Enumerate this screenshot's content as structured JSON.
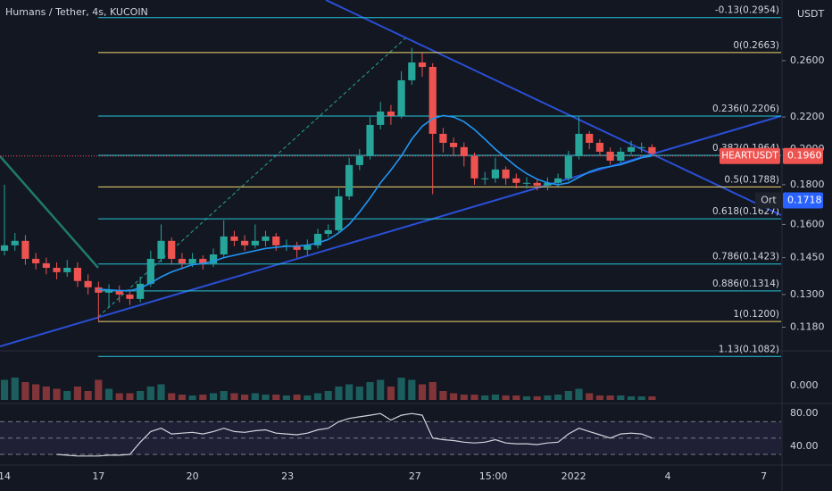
{
  "header": {
    "title": "Humans / Tether, 4s, KUCOIN",
    "currency": "USDT"
  },
  "chart_data": {
    "type": "candlestick",
    "scale": "log",
    "up_color": "#26a69a",
    "down_color": "#ef5350",
    "xlim": [
      -0.43,
      74.36
    ],
    "xticks": [
      {
        "value": 0,
        "label": "14"
      },
      {
        "value": 9,
        "label": "17"
      },
      {
        "value": 18,
        "label": "20"
      },
      {
        "value": 27.1,
        "label": "23"
      },
      {
        "value": 39.3,
        "label": "27"
      },
      {
        "value": 46.8,
        "label": "15:00"
      },
      {
        "value": 54.5,
        "label": "2022"
      },
      {
        "value": 63.5,
        "label": "4"
      },
      {
        "value": 72.7,
        "label": "7"
      }
    ],
    "ylim": [
      0.1103,
      0.3112
    ],
    "yticks": [
      {
        "value": 0.26,
        "label": "0.2600"
      },
      {
        "value": 0.22,
        "label": "0.2200"
      },
      {
        "value": 0.2,
        "label": "0.2000"
      },
      {
        "value": 0.18,
        "label": "0.1800"
      },
      {
        "value": 0.16,
        "label": "0.1600"
      },
      {
        "value": 0.145,
        "label": "0.1450"
      },
      {
        "value": 0.13,
        "label": "0.1300"
      },
      {
        "value": 0.118,
        "label": "0.1180"
      }
    ],
    "open": [
      0.148,
      0.1504,
      0.1524,
      0.1445,
      0.1426,
      0.1407,
      0.1389,
      0.1407,
      0.1353,
      0.1328,
      0.1307,
      0.1317,
      0.13,
      0.1283,
      0.1342,
      0.1445,
      0.1524,
      0.1445,
      0.1426,
      0.1445,
      0.1426,
      0.1464,
      0.1544,
      0.1524,
      0.1504,
      0.1524,
      0.1544,
      0.1504,
      0.1504,
      0.1484,
      0.1504,
      0.1556,
      0.1573,
      0.1739,
      0.1908,
      0.1959,
      0.2149,
      0.2236,
      0.2207,
      0.2453,
      0.2586,
      0.2552,
      0.2093,
      0.2038,
      0.2012,
      0.1959,
      0.1834,
      0.1834,
      0.1883,
      0.1834,
      0.181,
      0.181,
      0.1795,
      0.181,
      0.1834,
      0.1959,
      0.2093,
      0.2038,
      0.1985,
      0.1933,
      0.1985,
      0.2012,
      0.2012
    ],
    "high": [
      0.18,
      0.156,
      0.155,
      0.147,
      0.145,
      0.143,
      0.144,
      0.143,
      0.138,
      0.135,
      0.134,
      0.1335,
      0.132,
      0.137,
      0.148,
      0.16,
      0.154,
      0.147,
      0.147,
      0.146,
      0.149,
      0.162,
      0.157,
      0.155,
      0.16,
      0.157,
      0.156,
      0.153,
      0.152,
      0.153,
      0.158,
      0.16,
      0.178,
      0.195,
      0.2,
      0.22,
      0.23,
      0.228,
      0.252,
      0.27,
      0.266,
      0.258,
      0.213,
      0.207,
      0.204,
      0.198,
      0.187,
      0.195,
      0.19,
      0.186,
      0.184,
      0.183,
      0.184,
      0.186,
      0.199,
      0.2206,
      0.211,
      0.206,
      0.201,
      0.201,
      0.205,
      0.204,
      0.203
    ],
    "low": [
      0.146,
      0.148,
      0.142,
      0.14,
      0.138,
      0.136,
      0.137,
      0.133,
      0.13,
      0.12,
      0.125,
      0.127,
      0.126,
      0.127,
      0.133,
      0.143,
      0.142,
      0.14,
      0.141,
      0.14,
      0.141,
      0.145,
      0.15,
      0.148,
      0.149,
      0.15,
      0.148,
      0.148,
      0.145,
      0.146,
      0.149,
      0.154,
      0.156,
      0.172,
      0.188,
      0.194,
      0.212,
      0.215,
      0.219,
      0.242,
      0.248,
      0.175,
      0.198,
      0.196,
      0.19,
      0.18,
      0.18,
      0.181,
      0.18,
      0.178,
      0.178,
      0.177,
      0.177,
      0.179,
      0.182,
      0.194,
      0.2,
      0.196,
      0.191,
      0.192,
      0.197,
      0.198,
      0.196
    ],
    "close": [
      0.1504,
      0.1524,
      0.1445,
      0.1426,
      0.1407,
      0.1389,
      0.1407,
      0.1353,
      0.1328,
      0.1307,
      0.1317,
      0.13,
      0.1283,
      0.1342,
      0.1445,
      0.1524,
      0.1445,
      0.1426,
      0.1445,
      0.1426,
      0.1464,
      0.1544,
      0.1524,
      0.1504,
      0.1524,
      0.1544,
      0.1504,
      0.1504,
      0.1484,
      0.1504,
      0.1556,
      0.1573,
      0.1739,
      0.1908,
      0.1959,
      0.2149,
      0.2236,
      0.2207,
      0.2453,
      0.2586,
      0.2552,
      0.2093,
      0.2038,
      0.2012,
      0.1959,
      0.1834,
      0.1834,
      0.1883,
      0.1834,
      0.181,
      0.181,
      0.1795,
      0.181,
      0.1834,
      0.1959,
      0.2093,
      0.2038,
      0.1985,
      0.1933,
      0.1985,
      0.2012,
      0.2012,
      0.1975
    ],
    "ma": {
      "color": "#2196f3",
      "values": [
        null,
        null,
        null,
        null,
        null,
        null,
        null,
        null,
        null,
        0.132,
        0.1318,
        0.1315,
        0.1315,
        0.1325,
        0.1345,
        0.137,
        0.139,
        0.1405,
        0.142,
        0.1425,
        0.1435,
        0.145,
        0.146,
        0.147,
        0.148,
        0.149,
        0.1495,
        0.15,
        0.15,
        0.1505,
        0.1515,
        0.153,
        0.156,
        0.16,
        0.166,
        0.173,
        0.181,
        0.188,
        0.196,
        0.206,
        0.214,
        0.219,
        0.221,
        0.22,
        0.217,
        0.212,
        0.206,
        0.2,
        0.195,
        0.19,
        0.186,
        0.183,
        0.181,
        0.18,
        0.181,
        0.184,
        0.187,
        0.189,
        0.19,
        0.191,
        0.193,
        0.195,
        0.196
      ]
    },
    "fib_levels": [
      {
        "label": "-0.13(0.2954)",
        "value": 0.2954,
        "color": "#26c6da"
      },
      {
        "label": "0(0.2663)",
        "value": 0.2663,
        "color": "#f5d76e"
      },
      {
        "label": "0.236(0.2206)",
        "value": 0.2206,
        "color": "#26c6da"
      },
      {
        "label": "0.382(0.1964)",
        "value": 0.1964,
        "color": "#26c6da"
      },
      {
        "label": "0.5(0.1788)",
        "value": 0.1788,
        "color": "#f5d76e"
      },
      {
        "label": "0.618(0.1627)",
        "value": 0.1627,
        "color": "#26c6da"
      },
      {
        "label": "0.786(0.1423)",
        "value": 0.1423,
        "color": "#26c6da"
      },
      {
        "label": "0.886(0.1314)",
        "value": 0.1314,
        "color": "#26c6da"
      },
      {
        "label": "1(0.1200)",
        "value": 0.12,
        "color": "#f5d76e"
      },
      {
        "label": "1.13(0.1082)",
        "value": 0.1082,
        "color": "#26c6da"
      }
    ],
    "last_price": {
      "name": "HEARTUSDT",
      "value": 0.196,
      "label": "0.1960",
      "color": "#ef5350"
    },
    "marker": {
      "name": "Ort",
      "value": 0.1718,
      "color": "#2962ff"
    },
    "volume": {
      "values": [
        45,
        50,
        40,
        35,
        30,
        25,
        20,
        30,
        20,
        45,
        25,
        15,
        15,
        20,
        30,
        35,
        15,
        12,
        10,
        12,
        15,
        20,
        15,
        12,
        15,
        12,
        12,
        10,
        12,
        10,
        15,
        20,
        30,
        35,
        30,
        40,
        45,
        30,
        50,
        45,
        35,
        40,
        20,
        15,
        12,
        12,
        10,
        12,
        10,
        10,
        8,
        8,
        10,
        12,
        20,
        25,
        15,
        10,
        10,
        10,
        8,
        8,
        8
      ],
      "ylim": [
        0,
        100
      ],
      "yticks": [
        {
          "value": 0,
          "label": "0.000"
        }
      ]
    },
    "rsi": {
      "color": "#d1d4dc",
      "values": [
        null,
        null,
        null,
        null,
        null,
        30,
        29,
        28,
        28,
        28,
        29,
        29,
        30,
        45,
        58,
        62,
        55,
        56,
        57,
        55,
        58,
        62,
        58,
        57,
        59,
        60,
        56,
        55,
        54,
        56,
        60,
        62,
        70,
        74,
        76,
        78,
        80,
        72,
        78,
        80,
        78,
        50,
        48,
        47,
        45,
        44,
        45,
        48,
        44,
        43,
        43,
        42,
        44,
        45,
        55,
        62,
        58,
        54,
        50,
        55,
        56,
        55,
        50
      ],
      "ylim": [
        18,
        89
      ],
      "yticks": [
        {
          "value": 80,
          "label": "80.00"
        },
        {
          "value": 40,
          "label": "40.00"
        }
      ],
      "levels": [
        70,
        50,
        30
      ]
    }
  }
}
